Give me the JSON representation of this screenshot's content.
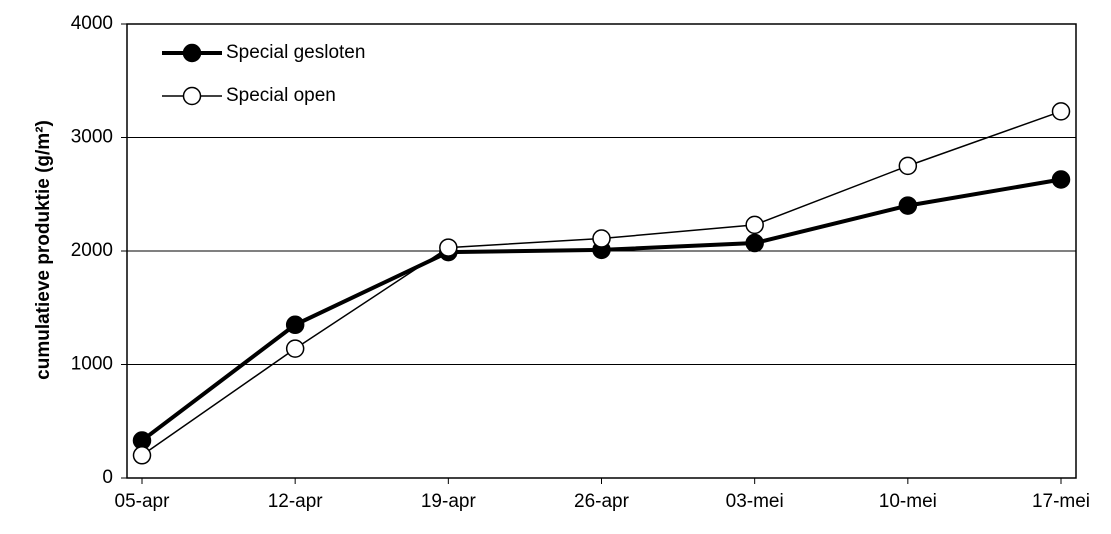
{
  "chart_data": {
    "type": "line",
    "ylabel": "cumulatieve produktie (g/m²)",
    "categories": [
      "05-apr",
      "12-apr",
      "19-apr",
      "26-apr",
      "03-mei",
      "10-mei",
      "17-mei"
    ],
    "series": [
      {
        "name": "Special gesloten",
        "color": "#000000",
        "marker": "filled",
        "values": [
          330,
          1350,
          1990,
          2010,
          2070,
          2400,
          2630
        ]
      },
      {
        "name": "Special open",
        "color": "#000000",
        "marker": "open",
        "values": [
          200,
          1140,
          2030,
          2110,
          2230,
          2750,
          3230
        ]
      }
    ],
    "ylim": [
      0,
      4000
    ],
    "yticks": [
      0,
      1000,
      2000,
      3000,
      4000
    ],
    "grid": true,
    "legend": "upper left"
  }
}
